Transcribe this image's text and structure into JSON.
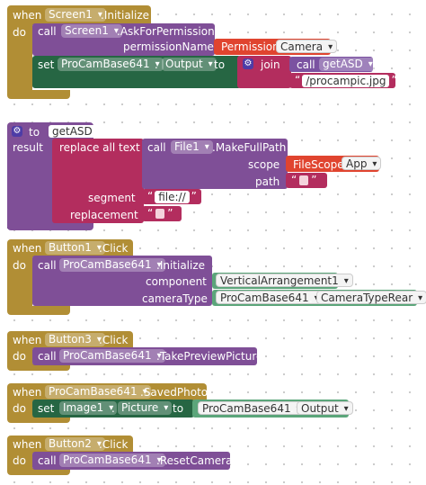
{
  "blocks": {
    "screen1_init": {
      "when": "when",
      "component": "Screen1",
      "event": ".Initialize",
      "do": "do",
      "call1": {
        "call": "call",
        "component": "Screen1",
        "method": ".AskForPermission",
        "param_name": "permissionName",
        "permission_block": "Permission",
        "permission_value": "Camera"
      },
      "set1": {
        "set": "set",
        "component": "ProCamBase641",
        "dot": ".",
        "property": "Output",
        "to": "to",
        "join": "join",
        "call": "call",
        "proc": "getASD",
        "string": "/procampic.jpg"
      }
    },
    "getasd_proc": {
      "to": "to",
      "name": "getASD",
      "result": "result",
      "replace": "replace all text",
      "call": "call",
      "component": "File1",
      "method": ".MakeFullPath",
      "scope_label": "scope",
      "scope_block": "FileScope",
      "scope_value": "App",
      "path_label": "path",
      "segment_label": "segment",
      "segment_value": "file://",
      "replacement_label": "replacement"
    },
    "button1_click": {
      "when": "when",
      "component": "Button1",
      "event": ".Click",
      "do": "do",
      "call": "call",
      "target": "ProCamBase641",
      "method": ".Initialize",
      "component_label": "component",
      "component_value": "VerticalArrangement1",
      "cameratype_label": "cameraType",
      "cameratype_comp": "ProCamBase641",
      "dot": ".",
      "cameratype_value": "CameraTypeRear"
    },
    "button3_click": {
      "when": "when",
      "component": "Button3",
      "event": ".Click",
      "do": "do",
      "call": "call",
      "target": "ProCamBase641",
      "method": ".TakePreviewPicture"
    },
    "saved_photo": {
      "when": "when",
      "component": "ProCamBase641",
      "event": ".SavedPhoto",
      "do": "do",
      "set": "set",
      "target": "Image1",
      "dot": ".",
      "property": "Picture",
      "to": "to",
      "getter_comp": "ProCamBase641",
      "getter_dot": ".",
      "getter_prop": "Output"
    },
    "button2_click": {
      "when": "when",
      "component": "Button2",
      "event": ".Click",
      "do": "do",
      "call": "call",
      "target": "ProCamBase641",
      "method": ".ResetCamera"
    }
  },
  "colors": {
    "event": "#b18e35",
    "procedure": "#7f4f97",
    "component_set": "#266643",
    "text": "#b32d5e",
    "helper": "#e0442f",
    "component_ref": "#5ba57a"
  },
  "icons": {
    "procedure_gear": "gear-icon",
    "join_gear": "gear-icon"
  }
}
